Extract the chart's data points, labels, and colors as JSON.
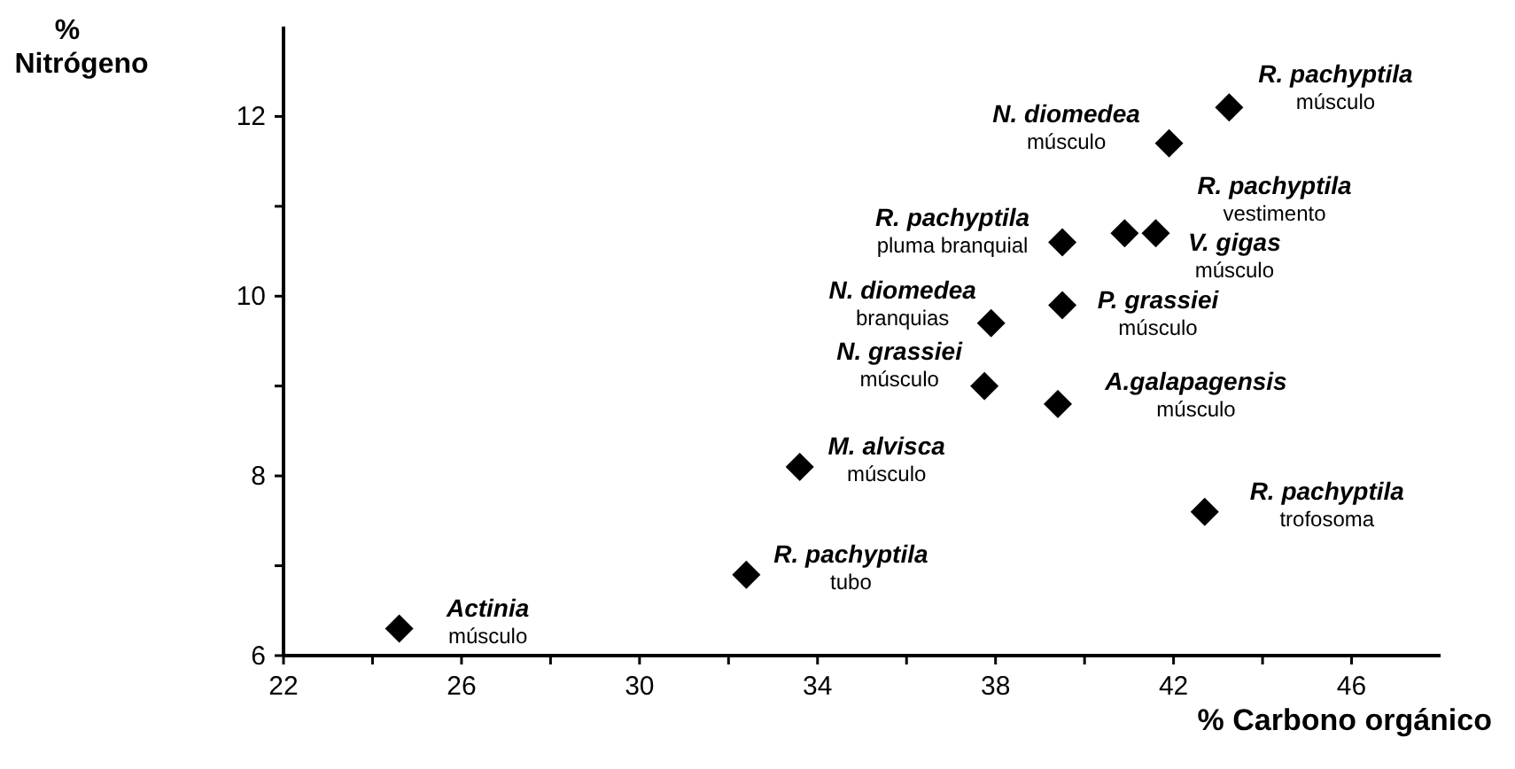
{
  "chart_data": {
    "type": "scatter",
    "xlabel": "% Carbono orgánico",
    "ylabel": "% Nitrógeno",
    "marker": "diamond",
    "grid": false,
    "xlim": [
      22,
      48
    ],
    "ylim": [
      6,
      13
    ],
    "xticks": [
      22,
      {
        "value": 24,
        "label": null
      },
      26,
      {
        "value": 28,
        "label": null
      },
      30,
      {
        "value": 32,
        "label": null
      },
      34,
      {
        "value": 36,
        "label": null
      },
      38,
      {
        "value": 40,
        "label": null
      },
      42,
      {
        "value": 44,
        "label": null
      },
      46
    ],
    "yticks": [
      6,
      {
        "value": 7,
        "label": null
      },
      8,
      {
        "value": 9,
        "label": null
      },
      10,
      {
        "value": 11,
        "label": null
      },
      12
    ],
    "series": [
      {
        "color": "#000000",
        "x": [
          24.6,
          32.4,
          33.6,
          37.75,
          37.9,
          39.5,
          41.9,
          43.25,
          41.6,
          40.9,
          39.5,
          39.4,
          42.7
        ],
        "values": [
          6.3,
          6.9,
          8.1,
          9.0,
          9.7,
          10.6,
          11.7,
          12.1,
          10.7,
          10.7,
          9.9,
          8.8,
          7.6
        ]
      }
    ],
    "annotations": [
      {
        "text": "Actinia\nmúsculo",
        "x": 24.6,
        "y": 6.3
      },
      {
        "text": "R. pachyptila\ntubo",
        "x": 32.4,
        "y": 6.9
      },
      {
        "text": "M. alvisca\nmúsculo",
        "x": 33.6,
        "y": 8.1
      },
      {
        "text": "N. grassiei\nmúsculo",
        "x": 37.75,
        "y": 9.0
      },
      {
        "text": "N. diomedea\nbranquias",
        "x": 37.9,
        "y": 9.7
      },
      {
        "text": "R. pachyptila\npluma branquial",
        "x": 39.5,
        "y": 10.6
      },
      {
        "text": "N. diomedea\nmúsculo",
        "x": 41.9,
        "y": 11.7
      },
      {
        "text": "R. pachyptila\nmúsculo",
        "x": 43.25,
        "y": 12.1
      },
      {
        "text": "R. pachyptila\nvestimento",
        "x": 41.6,
        "y": 10.7
      },
      {
        "text": "V. gigas\nmúsculo",
        "x": 40.9,
        "y": 10.7
      },
      {
        "text": "P. grassiei\nmúsculo",
        "x": 39.5,
        "y": 9.9
      },
      {
        "text": "A.galapagensis\nmúsculo",
        "x": 39.4,
        "y": 8.8
      },
      {
        "text": "R. pachyptila\ntrofosoma",
        "x": 42.7,
        "y": 7.6
      }
    ]
  }
}
